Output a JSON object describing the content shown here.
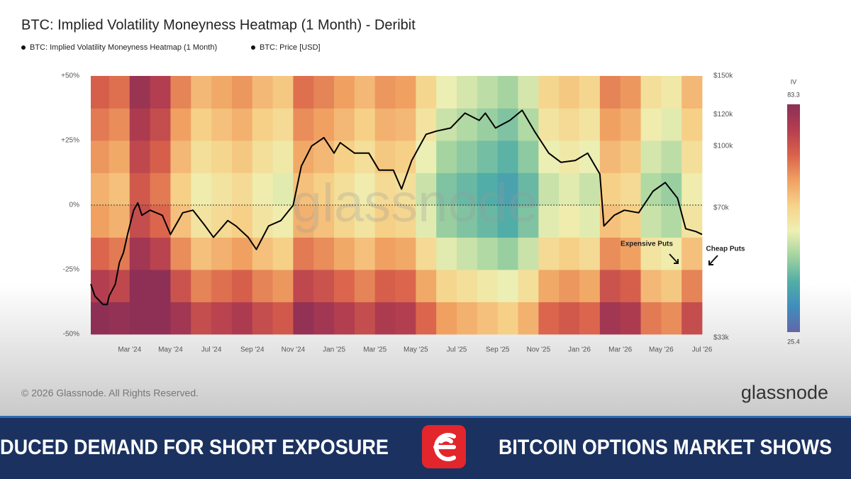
{
  "chart_data": {
    "type": "heatmap",
    "title": "BTC: Implied Volatility Moneyness Heatmap (1 Month) - Deribit",
    "heatmap": {
      "name": "BTC: Implied Volatility Moneyness Heatmap (1 Month)",
      "x_bins": [
        0.1,
        1,
        2,
        3,
        4,
        5,
        6,
        7,
        8,
        9,
        10,
        11,
        12,
        13,
        14,
        15,
        16,
        17,
        18,
        19,
        20,
        21,
        22,
        23,
        24,
        25,
        26,
        27,
        28,
        29,
        30
      ],
      "y_bins": [
        -50,
        -37.5,
        -25,
        -12.5,
        0,
        12.5,
        25,
        37.5,
        50
      ],
      "values": [
        [
          83,
          82,
          83,
          83,
          80,
          74,
          76,
          78,
          74,
          72,
          82,
          80,
          77,
          74,
          78,
          77,
          70,
          64,
          62,
          60,
          58,
          62,
          70,
          72,
          70,
          80,
          78,
          68,
          66,
          74
        ],
        [
          77,
          75,
          83,
          83,
          73,
          67,
          69,
          71,
          67,
          65,
          75,
          73,
          70,
          67,
          71,
          70,
          63,
          57,
          55,
          53,
          51,
          55,
          63,
          65,
          63,
          73,
          71,
          61,
          59,
          67
        ],
        [
          70,
          68,
          80,
          76,
          66,
          60,
          62,
          64,
          60,
          58,
          68,
          66,
          63,
          60,
          64,
          63,
          56,
          50,
          48,
          46,
          44,
          48,
          56,
          58,
          56,
          66,
          64,
          54,
          52,
          60
        ],
        [
          64,
          62,
          74,
          70,
          60,
          54,
          56,
          58,
          54,
          52,
          62,
          60,
          57,
          54,
          58,
          57,
          50,
          44,
          42,
          40,
          38,
          42,
          50,
          52,
          50,
          60,
          58,
          48,
          46,
          54
        ],
        [
          62,
          60,
          72,
          68,
          58,
          52,
          54,
          56,
          52,
          50,
          60,
          58,
          55,
          52,
          56,
          55,
          48,
          42,
          40,
          38,
          36,
          40,
          48,
          50,
          48,
          58,
          56,
          46,
          44,
          52
        ],
        [
          65,
          63,
          75,
          71,
          61,
          55,
          57,
          59,
          55,
          53,
          63,
          61,
          58,
          55,
          59,
          58,
          51,
          45,
          43,
          41,
          39,
          43,
          51,
          53,
          51,
          61,
          59,
          49,
          47,
          55
        ],
        [
          68,
          66,
          78,
          74,
          64,
          58,
          60,
          62,
          58,
          56,
          66,
          64,
          61,
          58,
          62,
          61,
          54,
          48,
          46,
          44,
          42,
          46,
          54,
          56,
          54,
          64,
          62,
          52,
          50,
          58
        ],
        [
          71,
          69,
          81,
          77,
          67,
          61,
          63,
          65,
          61,
          59,
          69,
          67,
          64,
          61,
          65,
          64,
          57,
          51,
          49,
          47,
          45,
          49,
          57,
          59,
          57,
          67,
          65,
          55,
          53,
          61
        ]
      ],
      "zlim": [
        25.4,
        83.3
      ],
      "colorbar_label": "IV",
      "colormap": [
        "#6466a8",
        "#3f8dbd",
        "#52aea6",
        "#a2d39f",
        "#eef0b3",
        "#f6d38a",
        "#f0a162",
        "#d9624b",
        "#b43e4f",
        "#8c2f56"
      ]
    },
    "series": [
      {
        "name": "BTC: Price [USD]",
        "color": "#000000",
        "axis": "y2",
        "x": [
          0.1,
          0.3,
          0.7,
          0.9,
          1.0,
          1.3,
          1.5,
          1.7,
          1.9,
          2.2,
          2.4,
          2.6,
          3.0,
          3.6,
          4.0,
          4.6,
          5.1,
          5.7,
          6.1,
          6.8,
          7.2,
          7.8,
          8.2,
          8.8,
          9.4,
          10.0,
          10.4,
          10.9,
          11.5,
          12.0,
          12.3,
          13.0,
          13.7,
          14.2,
          14.9,
          15.3,
          15.8,
          16.5,
          17.0,
          17.7,
          18.4,
          19.1,
          19.4,
          19.9,
          20.6,
          21.2,
          21.8,
          22.5,
          23.1,
          23.8,
          24.4,
          25.0,
          25.2,
          25.7,
          26.2,
          26.9,
          27.6,
          28.2,
          28.8,
          29.2,
          29.7,
          30.0
        ],
        "values": [
          45000,
          42000,
          40000,
          40000,
          42000,
          45000,
          51000,
          54000,
          60000,
          69000,
          72000,
          67000,
          69000,
          67000,
          60000,
          68000,
          69000,
          63000,
          59000,
          65000,
          63000,
          59000,
          55000,
          63000,
          65000,
          71000,
          89000,
          100000,
          105000,
          96000,
          102000,
          96000,
          96000,
          87000,
          87000,
          78000,
          92000,
          107000,
          109000,
          111000,
          121000,
          116000,
          121000,
          111000,
          116000,
          123000,
          109000,
          96000,
          91000,
          92000,
          96000,
          85000,
          63000,
          67000,
          69000,
          68000,
          77000,
          81000,
          74000,
          62000,
          61000,
          60000
        ]
      }
    ],
    "xlim": [
      0.1,
      30
    ],
    "xticks": [
      {
        "value": 2,
        "label": "Mar '24"
      },
      {
        "value": 4,
        "label": "May '24"
      },
      {
        "value": 6,
        "label": "Jul '24"
      },
      {
        "value": 8,
        "label": "Sep '24"
      },
      {
        "value": 10,
        "label": "Nov '24"
      },
      {
        "value": 12,
        "label": "Jan '25"
      },
      {
        "value": 14,
        "label": "Mar '25"
      },
      {
        "value": 16,
        "label": "May '25"
      },
      {
        "value": 18,
        "label": "Jul '25"
      },
      {
        "value": 20,
        "label": "Sep '25"
      },
      {
        "value": 22,
        "label": "Nov '25"
      },
      {
        "value": 24,
        "label": "Jan '26"
      },
      {
        "value": 26,
        "label": "Mar '26"
      },
      {
        "value": 28,
        "label": "May '26"
      },
      {
        "value": 30,
        "label": "Jul '26"
      }
    ],
    "ylim": [
      -50,
      50
    ],
    "yticks": [
      {
        "value": -50,
        "label": "-50%"
      },
      {
        "value": -25,
        "label": "-25%"
      },
      {
        "value": 0,
        "label": "0%"
      },
      {
        "value": 25,
        "label": "+25%"
      },
      {
        "value": 50,
        "label": "+50%"
      }
    ],
    "y2lim": [
      33000,
      150000
    ],
    "y2log": true,
    "y2ticks": [
      {
        "value": 33000,
        "label": "$33k"
      },
      {
        "value": 70000,
        "label": "$70k"
      },
      {
        "value": 100000,
        "label": "$100k"
      },
      {
        "value": 120000,
        "label": "$120k"
      },
      {
        "value": 150000,
        "label": "$150k"
      }
    ],
    "annotations": [
      {
        "text": "Expensive Puts"
      },
      {
        "text": "Cheap Puts"
      }
    ],
    "watermark": "glassnode"
  },
  "footer": {
    "copyright": "© 2026 Glassnode. All Rights Reserved.",
    "logo": "glassnode"
  },
  "banner": {
    "left": "DUCED DEMAND FOR SHORT EXPOSURE",
    "right": "BITCOIN OPTIONS MARKET SHOWS"
  }
}
